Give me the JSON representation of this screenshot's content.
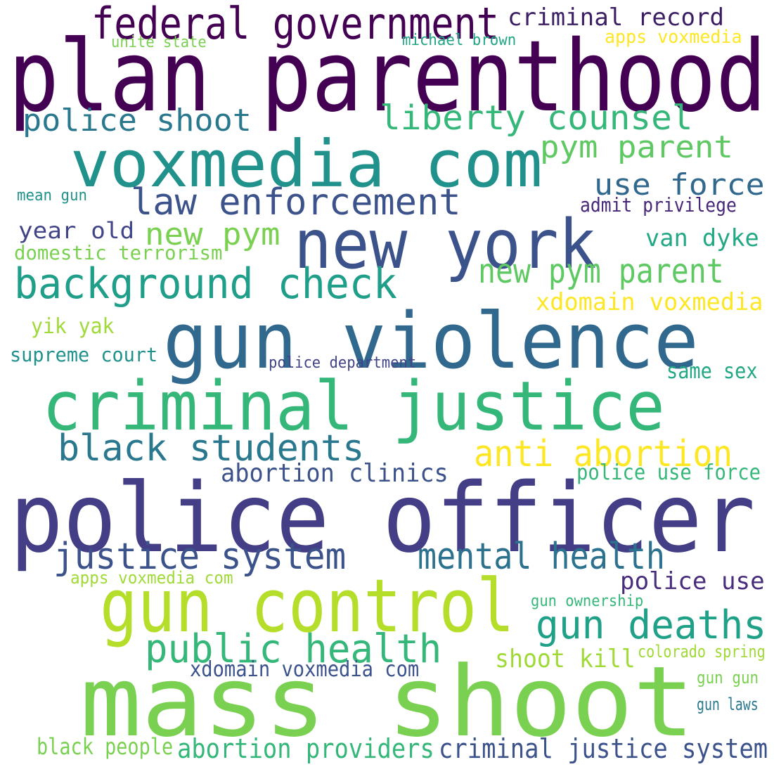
{
  "words": [
    {
      "text": "plan parenthood",
      "color": "#440154"
    },
    {
      "text": "federal government",
      "color": "#440154"
    },
    {
      "text": "criminal record",
      "color": "#3b1e63"
    },
    {
      "text": "unite state",
      "color": "#7ad151"
    },
    {
      "text": "michael brown",
      "color": "#21a585"
    },
    {
      "text": "apps voxmedia",
      "color": "#fde725"
    },
    {
      "text": "voxmedia com",
      "color": "#21918c"
    },
    {
      "text": "police shoot",
      "color": "#2a788e"
    },
    {
      "text": "liberty counsel",
      "color": "#35b779"
    },
    {
      "text": "pym parent",
      "color": "#5ec962"
    },
    {
      "text": "use force",
      "color": "#31688e"
    },
    {
      "text": "law enforcement",
      "color": "#3b528b"
    },
    {
      "text": "admit privilege",
      "color": "#482878"
    },
    {
      "text": "mean gun",
      "color": "#21918c"
    },
    {
      "text": "new york",
      "color": "#3b528b"
    },
    {
      "text": "year old",
      "color": "#414487"
    },
    {
      "text": "new pym",
      "color": "#7ad151"
    },
    {
      "text": "van dyke",
      "color": "#22a884"
    },
    {
      "text": "domestic terrorism",
      "color": "#7ad151"
    },
    {
      "text": "background check",
      "color": "#1f9e89"
    },
    {
      "text": "new pym parent",
      "color": "#5ec962"
    },
    {
      "text": "xdomain voxmedia",
      "color": "#fde725"
    },
    {
      "text": "gun violence",
      "color": "#31688e"
    },
    {
      "text": "yik yak",
      "color": "#a0da39"
    },
    {
      "text": "supreme court",
      "color": "#21918c"
    },
    {
      "text": "police department",
      "color": "#414487"
    },
    {
      "text": "same sex",
      "color": "#22a884"
    },
    {
      "text": "criminal justice",
      "color": "#35b779"
    },
    {
      "text": "black students",
      "color": "#2a788e"
    },
    {
      "text": "anti abortion",
      "color": "#fde725"
    },
    {
      "text": "abortion clinics",
      "color": "#3b528b"
    },
    {
      "text": "police use force",
      "color": "#35b779"
    },
    {
      "text": "police officer",
      "color": "#433e85"
    },
    {
      "text": "justice system",
      "color": "#3b528b"
    },
    {
      "text": "mental health",
      "color": "#2c728e"
    },
    {
      "text": "apps voxmedia com",
      "color": "#a0da39"
    },
    {
      "text": "police use",
      "color": "#472d7b"
    },
    {
      "text": "gun control",
      "color": "#b5de2b"
    },
    {
      "text": "gun ownership",
      "color": "#35b779"
    },
    {
      "text": "gun deaths",
      "color": "#1fa187"
    },
    {
      "text": "public health",
      "color": "#35b779"
    },
    {
      "text": "shoot kill",
      "color": "#a0da39"
    },
    {
      "text": "colorado spring",
      "color": "#a0da39"
    },
    {
      "text": "xdomain voxmedia com",
      "color": "#3b528b"
    },
    {
      "text": "mass shoot",
      "color": "#7ad151"
    },
    {
      "text": "gun gun",
      "color": "#7ad151"
    },
    {
      "text": "gun laws",
      "color": "#2a788e"
    },
    {
      "text": "black people",
      "color": "#7ad151"
    },
    {
      "text": "abortion providers",
      "color": "#35b779"
    },
    {
      "text": "criminal justice system",
      "color": "#3b528b"
    }
  ]
}
